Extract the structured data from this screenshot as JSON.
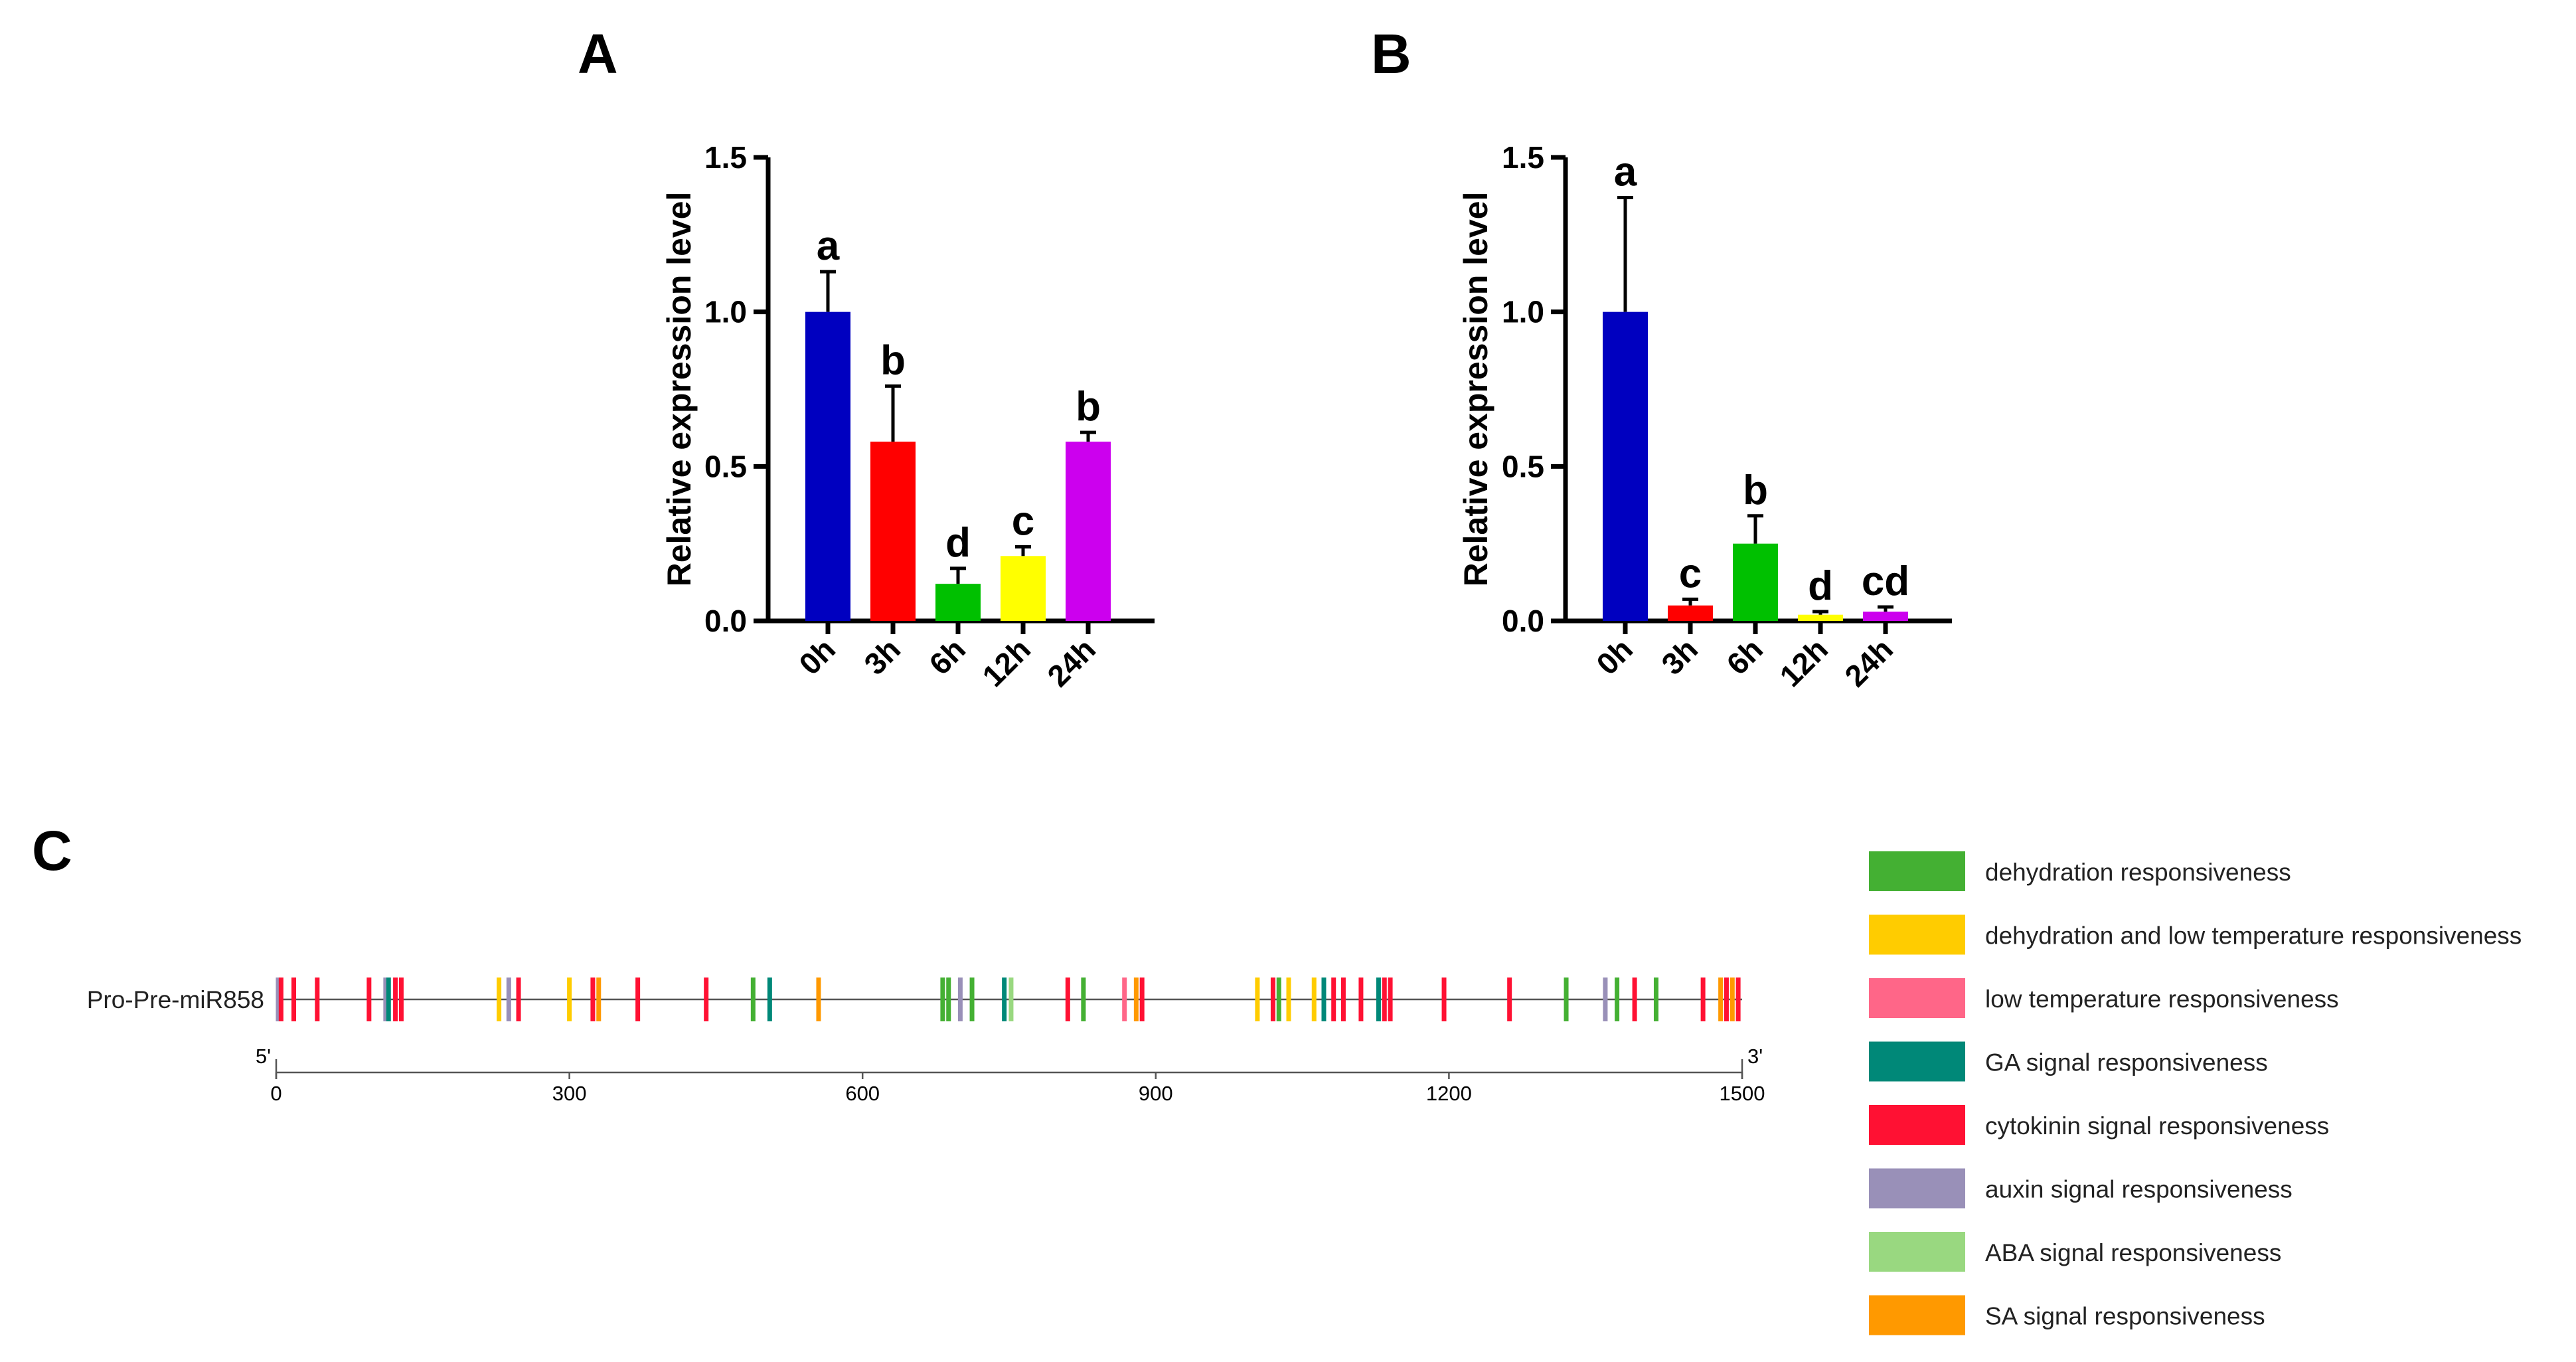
{
  "chart_data": [
    {
      "type": "bar",
      "panel": "A",
      "ylabel": "Relative expression level",
      "xlabel": "",
      "ylim": [
        0,
        1.5
      ],
      "yticks": [
        "0.0",
        "0.5",
        "1.0",
        "1.5"
      ],
      "categories": [
        "0h",
        "3h",
        "6h",
        "12h",
        "24h"
      ],
      "values": [
        1.0,
        0.58,
        0.12,
        0.21,
        0.58
      ],
      "errors": [
        0.13,
        0.18,
        0.05,
        0.03,
        0.03
      ],
      "letters": [
        "a",
        "b",
        "d",
        "c",
        "b"
      ],
      "colors": [
        "#0000c0",
        "#ff0000",
        "#00c000",
        "#ffff00",
        "#cc00ee"
      ]
    },
    {
      "type": "bar",
      "panel": "B",
      "ylabel": "Relative expression level",
      "xlabel": "",
      "ylim": [
        0,
        1.5
      ],
      "yticks": [
        "0.0",
        "0.5",
        "1.0",
        "1.5"
      ],
      "categories": [
        "0h",
        "3h",
        "6h",
        "12h",
        "24h"
      ],
      "values": [
        1.0,
        0.05,
        0.25,
        0.02,
        0.03
      ],
      "errors": [
        0.37,
        0.02,
        0.09,
        0.01,
        0.015
      ],
      "letters": [
        "a",
        "c",
        "b",
        "d",
        "cd"
      ],
      "colors": [
        "#0000c0",
        "#ff0000",
        "#00c000",
        "#ffff00",
        "#cc00ee"
      ]
    },
    {
      "type": "promoter-map",
      "panel": "C",
      "track_label": "Pro-Pre-miR858",
      "five_prime": "5'",
      "three_prime": "3'",
      "length": 1500,
      "scale_ticks": [
        "0",
        "300",
        "600",
        "900",
        "1200",
        "1500"
      ],
      "legend": [
        {
          "key": "dehydration",
          "label": "dehydration responsiveness",
          "color": "#44b033"
        },
        {
          "key": "dehydration_lowtemp",
          "label": "dehydration and low temperature responsiveness",
          "color": "#ffcc00"
        },
        {
          "key": "lowtemp",
          "label": "low temperature responsiveness",
          "color": "#ff6688"
        },
        {
          "key": "ga",
          "label": "GA signal responsiveness",
          "color": "#008878"
        },
        {
          "key": "cytokinin",
          "label": "cytokinin signal responsiveness",
          "color": "#ff1133"
        },
        {
          "key": "auxin",
          "label": "auxin signal responsiveness",
          "color": "#9990b8"
        },
        {
          "key": "aba",
          "label": "ABA signal responsiveness",
          "color": "#99d880"
        },
        {
          "key": "sa",
          "label": "SA signal responsiveness",
          "color": "#ff9900"
        }
      ],
      "elements": [
        {
          "pos": 2,
          "type": "auxin"
        },
        {
          "pos": 5,
          "type": "cytokinin"
        },
        {
          "pos": 18,
          "type": "cytokinin"
        },
        {
          "pos": 42,
          "type": "cytokinin"
        },
        {
          "pos": 95,
          "type": "cytokinin"
        },
        {
          "pos": 112,
          "type": "auxin"
        },
        {
          "pos": 115,
          "type": "ga"
        },
        {
          "pos": 122,
          "type": "cytokinin"
        },
        {
          "pos": 128,
          "type": "cytokinin"
        },
        {
          "pos": 228,
          "type": "dehydration_lowtemp"
        },
        {
          "pos": 238,
          "type": "auxin"
        },
        {
          "pos": 248,
          "type": "cytokinin"
        },
        {
          "pos": 300,
          "type": "dehydration_lowtemp"
        },
        {
          "pos": 324,
          "type": "cytokinin"
        },
        {
          "pos": 330,
          "type": "sa"
        },
        {
          "pos": 370,
          "type": "cytokinin"
        },
        {
          "pos": 440,
          "type": "cytokinin"
        },
        {
          "pos": 488,
          "type": "dehydration"
        },
        {
          "pos": 505,
          "type": "ga"
        },
        {
          "pos": 555,
          "type": "sa"
        },
        {
          "pos": 682,
          "type": "dehydration"
        },
        {
          "pos": 688,
          "type": "dehydration"
        },
        {
          "pos": 700,
          "type": "auxin"
        },
        {
          "pos": 712,
          "type": "dehydration"
        },
        {
          "pos": 745,
          "type": "ga"
        },
        {
          "pos": 752,
          "type": "aba"
        },
        {
          "pos": 810,
          "type": "cytokinin"
        },
        {
          "pos": 826,
          "type": "dehydration"
        },
        {
          "pos": 868,
          "type": "lowtemp"
        },
        {
          "pos": 880,
          "type": "sa"
        },
        {
          "pos": 886,
          "type": "cytokinin"
        },
        {
          "pos": 1004,
          "type": "dehydration_lowtemp"
        },
        {
          "pos": 1020,
          "type": "cytokinin"
        },
        {
          "pos": 1026,
          "type": "dehydration"
        },
        {
          "pos": 1036,
          "type": "dehydration_lowtemp"
        },
        {
          "pos": 1062,
          "type": "dehydration_lowtemp"
        },
        {
          "pos": 1072,
          "type": "ga"
        },
        {
          "pos": 1082,
          "type": "cytokinin"
        },
        {
          "pos": 1092,
          "type": "cytokinin"
        },
        {
          "pos": 1110,
          "type": "cytokinin"
        },
        {
          "pos": 1128,
          "type": "ga"
        },
        {
          "pos": 1134,
          "type": "cytokinin"
        },
        {
          "pos": 1140,
          "type": "cytokinin"
        },
        {
          "pos": 1195,
          "type": "cytokinin"
        },
        {
          "pos": 1262,
          "type": "cytokinin"
        },
        {
          "pos": 1320,
          "type": "dehydration"
        },
        {
          "pos": 1360,
          "type": "auxin"
        },
        {
          "pos": 1372,
          "type": "dehydration"
        },
        {
          "pos": 1390,
          "type": "cytokinin"
        },
        {
          "pos": 1412,
          "type": "dehydration"
        },
        {
          "pos": 1460,
          "type": "cytokinin"
        },
        {
          "pos": 1478,
          "type": "sa"
        },
        {
          "pos": 1484,
          "type": "cytokinin"
        },
        {
          "pos": 1490,
          "type": "sa"
        },
        {
          "pos": 1496,
          "type": "cytokinin"
        }
      ]
    }
  ]
}
